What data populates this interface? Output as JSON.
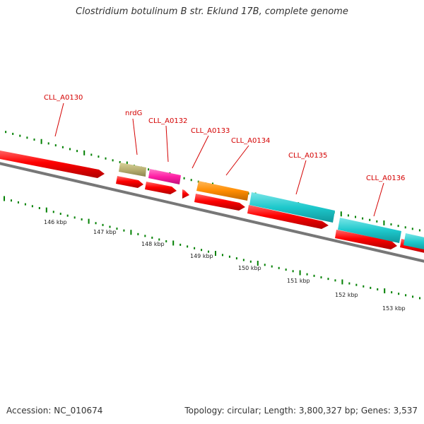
{
  "title": "Clostridium botulinum B str. Eklund 17B, complete genome",
  "accession": "Accession: NC_010674",
  "topology": "Topology: circular; Length: 3,800,327 bp; Genes: 3,537",
  "colors": {
    "forward_gene": "#ff0000",
    "nrdG": "#b8b072",
    "CLL_A0132": "#ff1fa5",
    "CLL_A0134": "#ff8c00",
    "CLL_A0135": "#1ec8cc",
    "CLL_A0136": "#1ec8cc",
    "label": "#d40000",
    "tick": "#008000",
    "backbone": "#777777"
  },
  "gene_labels": [
    {
      "id": "CLL_A0130",
      "text": "CLL_A0130"
    },
    {
      "id": "nrdG",
      "text": "nrdG"
    },
    {
      "id": "CLL_A0132",
      "text": "CLL_A0132"
    },
    {
      "id": "CLL_A0133",
      "text": "CLL_A0133"
    },
    {
      "id": "CLL_A0134",
      "text": "CLL_A0134"
    },
    {
      "id": "CLL_A0135",
      "text": "CLL_A0135"
    },
    {
      "id": "CLL_A0136",
      "text": "CLL_A0136"
    }
  ],
  "kbp_labels": [
    "146 kbp",
    "147 kbp",
    "148 kbp",
    "149 kbp",
    "150 kbp",
    "151 kbp",
    "152 kbp",
    "153 kbp"
  ]
}
